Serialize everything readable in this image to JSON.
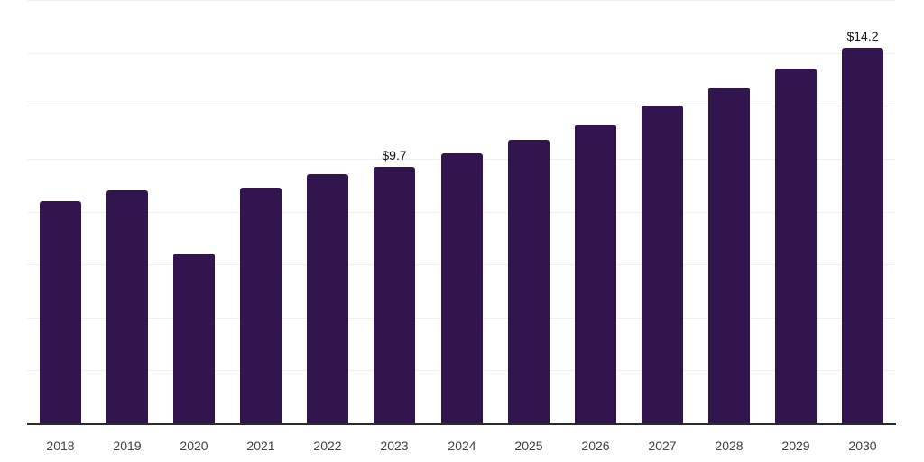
{
  "chart_data": {
    "type": "bar",
    "title": "",
    "xlabel": "",
    "ylabel": "",
    "categories": [
      "2018",
      "2019",
      "2020",
      "2021",
      "2022",
      "2023",
      "2024",
      "2025",
      "2026",
      "2027",
      "2028",
      "2029",
      "2030"
    ],
    "values": [
      8.4,
      8.8,
      6.4,
      8.9,
      9.4,
      9.7,
      10.2,
      10.7,
      11.3,
      12.0,
      12.7,
      13.4,
      14.2
    ],
    "value_annotations": [
      {
        "category": "2023",
        "label": "$9.7"
      },
      {
        "category": "2030",
        "label": "$14.2"
      }
    ],
    "ylim": [
      0,
      16
    ],
    "grid_step": 2,
    "grid": true,
    "legend": false,
    "y_axis_labels_visible": false
  },
  "colors": {
    "bar": "#32154e",
    "gridline": "#f0f0f1",
    "axis_line": "#2b2b2b",
    "tick_label": "#404040",
    "value_label": "#111111",
    "background": "#ffffff"
  }
}
